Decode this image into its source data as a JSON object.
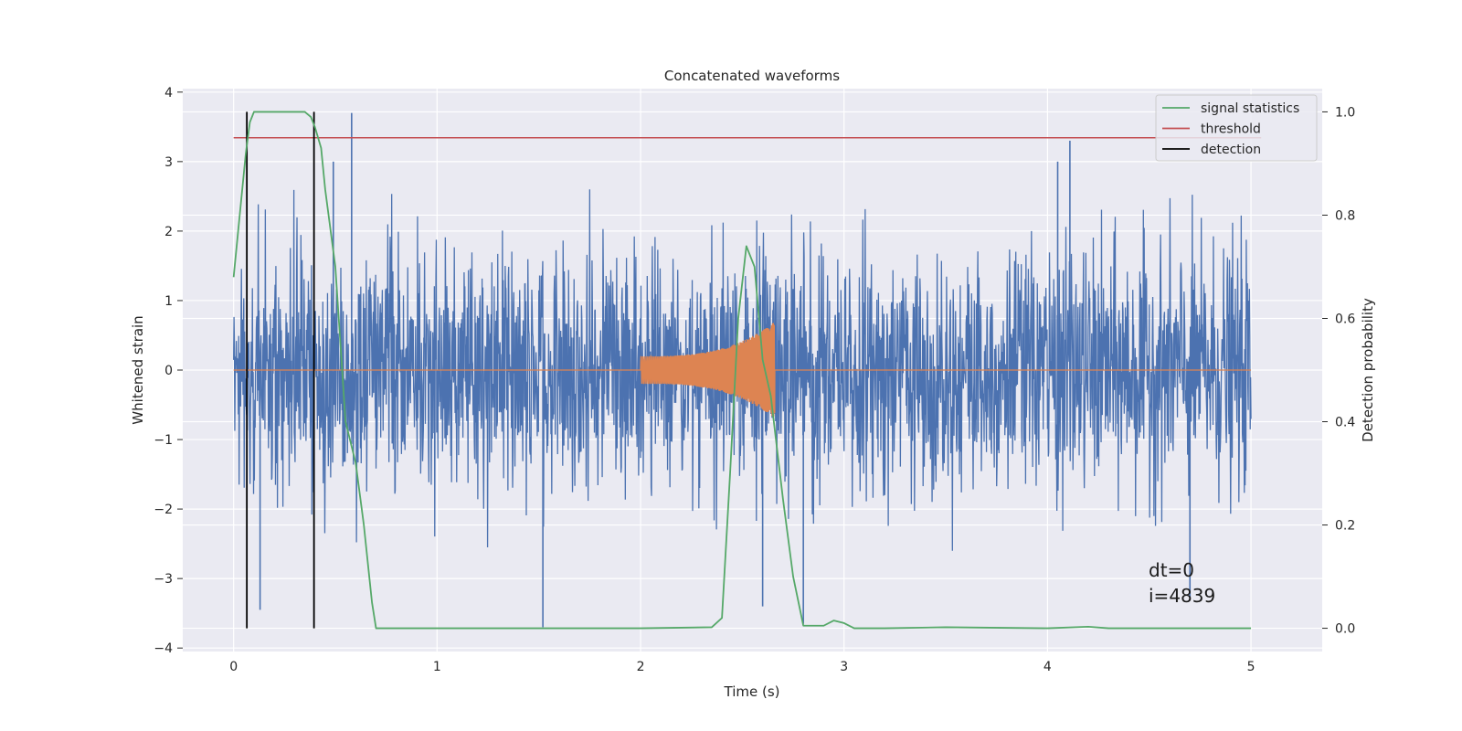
{
  "chart_data": {
    "type": "line",
    "title": "Concatenated waveforms",
    "xlabel": "Time (s)",
    "ylabel": "Whitened strain",
    "y2label": "Detection probability",
    "xlim": [
      -0.25,
      5.35
    ],
    "ylim": [
      -4.05,
      4.05
    ],
    "y2lim": [
      -0.045,
      1.045
    ],
    "xticks": [
      0,
      1,
      2,
      3,
      4,
      5
    ],
    "yticks": [
      -4,
      -3,
      -2,
      -1,
      0,
      1,
      2,
      3,
      4
    ],
    "y2ticks": [
      0.0,
      0.2,
      0.4,
      0.6,
      0.8,
      1.0
    ],
    "ytick_labels": [
      "−4",
      "−3",
      "−2",
      "−1",
      "0",
      "1",
      "2",
      "3",
      "4"
    ],
    "y2tick_labels": [
      "0.0",
      "0.2",
      "0.4",
      "0.6",
      "0.8",
      "1.0"
    ],
    "grid": true,
    "legend_position": "top-right",
    "legend": [
      "signal statistics",
      "threshold",
      "detection"
    ],
    "colors": {
      "strain": "#4c72b0",
      "injection": "#dd8452",
      "signal_statistics": "#55a868",
      "threshold": "#c44e52",
      "detection": "#000000",
      "background": "#eaeaf2",
      "grid": "#ffffff"
    },
    "strain": {
      "x_range": [
        0,
        5
      ],
      "typical_range": [
        -2.2,
        2.2
      ],
      "peaks": [
        {
          "x": 0.58,
          "y": 3.7
        },
        {
          "x": 0.49,
          "y": 3.0
        },
        {
          "x": 4.11,
          "y": 3.3
        },
        {
          "x": 4.05,
          "y": 3.0
        },
        {
          "x": 1.52,
          "y": -3.7
        },
        {
          "x": 2.8,
          "y": -3.65
        },
        {
          "x": 0.13,
          "y": -3.45
        },
        {
          "x": 2.6,
          "y": -3.4
        },
        {
          "x": 4.7,
          "y": -3.3
        }
      ]
    },
    "injection": {
      "start": 2.0,
      "end": 2.66,
      "amplitude_start": 0.2,
      "amplitude_end": 0.7
    },
    "signal_statistics": {
      "axis": "right",
      "x": [
        0,
        0.03,
        0.06,
        0.08,
        0.1,
        0.14,
        0.2,
        0.3,
        0.35,
        0.38,
        0.4,
        0.43,
        0.45,
        0.5,
        0.55,
        0.6,
        0.64,
        0.68,
        0.7,
        0.8,
        1.0,
        2.0,
        2.35,
        2.4,
        2.44,
        2.48,
        2.52,
        2.56,
        2.6,
        2.64,
        2.7,
        2.75,
        2.8,
        2.9,
        2.95,
        3.0,
        3.05,
        3.2,
        3.5,
        4.0,
        4.2,
        4.3,
        5.0
      ],
      "y": [
        0.68,
        0.8,
        0.92,
        0.98,
        1.0,
        1.0,
        1.0,
        1.0,
        1.0,
        0.99,
        0.97,
        0.93,
        0.85,
        0.7,
        0.4,
        0.32,
        0.2,
        0.05,
        0.0,
        0.0,
        0.0,
        0.0,
        0.002,
        0.02,
        0.3,
        0.6,
        0.74,
        0.7,
        0.52,
        0.45,
        0.25,
        0.1,
        0.005,
        0.005,
        0.015,
        0.01,
        0.0,
        0.0,
        0.002,
        0.0,
        0.003,
        0.0,
        0.0
      ]
    },
    "threshold": {
      "axis": "right",
      "y": 0.95,
      "x_range": [
        0,
        5.05
      ]
    },
    "detections": [
      0.065,
      0.395
    ],
    "detection_range": [
      0.0,
      1.0
    ],
    "annotation": [
      "dt=0",
      "i=4839"
    ]
  }
}
